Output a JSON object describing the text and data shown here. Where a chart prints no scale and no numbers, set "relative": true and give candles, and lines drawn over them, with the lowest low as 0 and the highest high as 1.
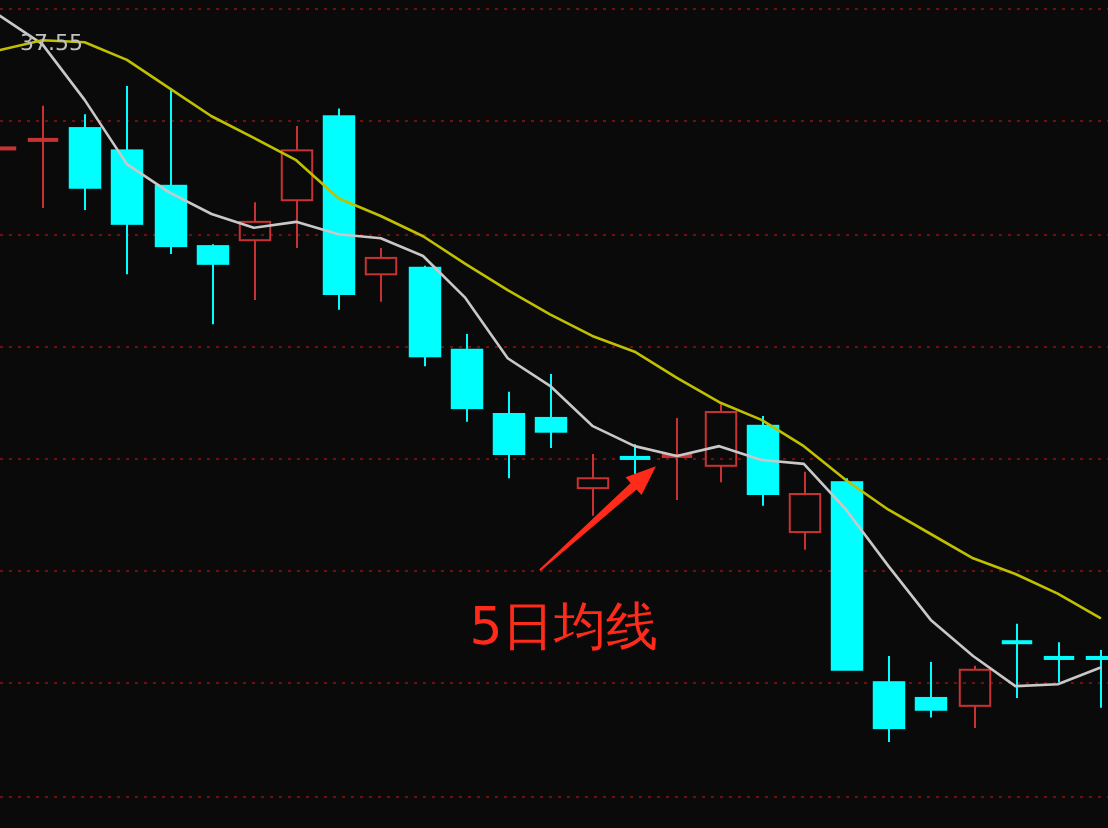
{
  "chart_data": {
    "type": "candlestick",
    "relative": true,
    "categories": [
      null,
      null,
      null,
      null,
      null,
      null,
      null,
      null,
      null,
      null,
      null,
      null,
      null,
      null,
      null,
      null,
      null,
      null,
      null,
      null,
      null,
      null,
      null,
      null,
      null,
      null,
      null
    ],
    "ohlc": [
      [
        0.905,
        0.905,
        0.905,
        0.905
      ],
      [
        0.918,
        0.97,
        0.814,
        0.918
      ],
      [
        0.936,
        0.957,
        0.811,
        0.845
      ],
      [
        0.902,
        1.0,
        0.713,
        0.79
      ],
      [
        0.848,
        0.997,
        0.744,
        0.756
      ],
      [
        0.756,
        0.759,
        0.637,
        0.729
      ],
      [
        0.765,
        0.823,
        0.674,
        0.793
      ],
      [
        0.826,
        0.939,
        0.753,
        0.902
      ],
      [
        0.954,
        0.966,
        0.659,
        0.683
      ],
      [
        0.713,
        0.753,
        0.671,
        0.738
      ],
      [
        0.723,
        0.726,
        0.573,
        0.588
      ],
      [
        0.598,
        0.622,
        0.488,
        0.509
      ],
      [
        0.5,
        0.534,
        0.402,
        0.439
      ],
      [
        0.494,
        0.561,
        0.448,
        0.473
      ],
      [
        0.387,
        0.439,
        0.345,
        0.402
      ],
      [
        0.433,
        0.454,
        0.409,
        0.433
      ],
      [
        0.436,
        0.494,
        0.369,
        0.436
      ],
      [
        0.421,
        0.515,
        0.396,
        0.503
      ],
      [
        0.482,
        0.497,
        0.36,
        0.378
      ],
      [
        0.32,
        0.412,
        0.293,
        0.378
      ],
      [
        0.396,
        0.402,
        0.11,
        0.11
      ],
      [
        0.091,
        0.131,
        0.0,
        0.021
      ],
      [
        0.067,
        0.122,
        0.037,
        0.049
      ],
      [
        0.055,
        0.116,
        0.021,
        0.11
      ],
      [
        0.152,
        0.18,
        0.067,
        0.152
      ],
      [
        0.128,
        0.152,
        0.091,
        0.128
      ],
      [
        0.128,
        0.14,
        0.052,
        0.128
      ]
    ],
    "colors": [
      "#c83232",
      "#c83232",
      "#00ffff",
      "#00ffff",
      "#00ffff",
      "#00ffff",
      "#c83232",
      "#c83232",
      "#00ffff",
      "#c83232",
      "#00ffff",
      "#00ffff",
      "#00ffff",
      "#00ffff",
      "#c83232",
      "#00ffff",
      "#c83232",
      "#c83232",
      "#00ffff",
      "#c83232",
      "#00ffff",
      "#00ffff",
      "#00ffff",
      "#c83232",
      "#00ffff",
      "#00ffff",
      "#00ffff"
    ],
    "series": [
      {
        "type": "line",
        "color": "#c8c8c8",
        "values": [
          1.107,
          1.064,
          0.979,
          0.881,
          0.838,
          0.805,
          0.784,
          0.793,
          0.774,
          0.768,
          0.741,
          0.677,
          0.585,
          0.543,
          0.482,
          0.451,
          0.436,
          0.451,
          0.43,
          0.424,
          0.354,
          0.268,
          0.186,
          0.131,
          0.085,
          0.088,
          0.113
        ]
      },
      {
        "type": "line",
        "color": "#c0c000",
        "values": [
          1.055,
          1.07,
          1.067,
          1.04,
          0.997,
          0.954,
          0.921,
          0.887,
          0.829,
          0.802,
          0.771,
          0.729,
          0.689,
          0.652,
          0.619,
          0.595,
          0.555,
          0.518,
          0.491,
          0.451,
          0.399,
          0.354,
          0.317,
          0.28,
          0.256,
          0.226,
          0.189
        ]
      }
    ],
    "ref_lines": [
      {
        "axis": "y",
        "value": 1.119,
        "color": "#6e1010",
        "line_style": "dotted"
      },
      {
        "axis": "y",
        "value": 0.948,
        "color": "#6e1010",
        "line_style": "dotted"
      },
      {
        "axis": "y",
        "value": 0.776,
        "color": "#6e1010",
        "line_style": "dotted"
      },
      {
        "axis": "y",
        "value": 0.605,
        "color": "#6e1010",
        "line_style": "dotted"
      },
      {
        "axis": "y",
        "value": 0.433,
        "color": "#6e1010",
        "line_style": "dotted"
      },
      {
        "axis": "y",
        "value": 0.262,
        "color": "#6e1010",
        "line_style": "dotted"
      },
      {
        "axis": "y",
        "value": 0.09,
        "color": "#6e1010",
        "line_style": "dotted"
      },
      {
        "axis": "y",
        "value": -0.082,
        "color": "#6e1010",
        "line_style": "dotted"
      }
    ],
    "annotations": [
      "37.55",
      "5日均线"
    ]
  }
}
